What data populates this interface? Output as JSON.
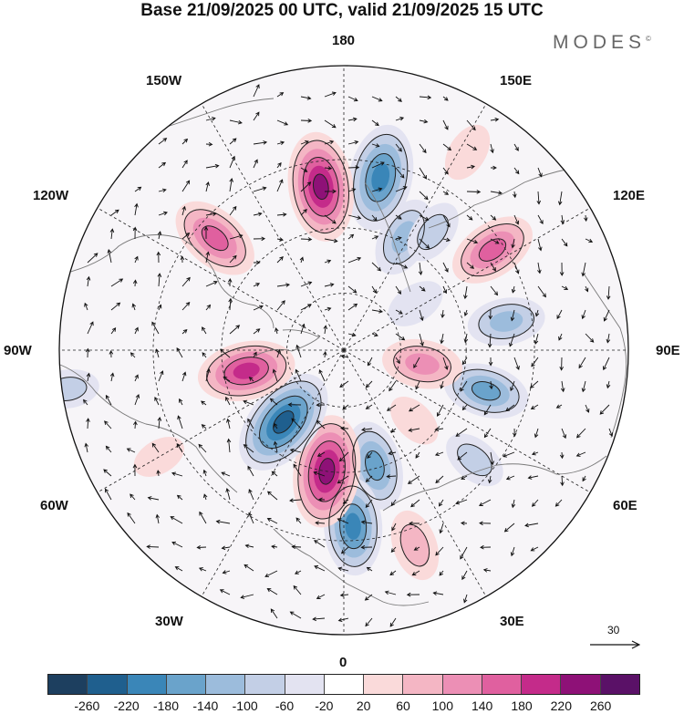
{
  "title": "Base 21/09/2025 00 UTC, valid 21/09/2025 15 UTC",
  "brand": {
    "name": "MODES",
    "mark": "©"
  },
  "longitude_labels": {
    "lon_180": "180",
    "lon_150e": "150E",
    "lon_120e": "120E",
    "lon_90e": "90E",
    "lon_60e": "60E",
    "lon_30e": "30E",
    "lon_0": "0",
    "lon_30w": "30W",
    "lon_60w": "60W",
    "lon_90w": "90W",
    "lon_120w": "120W",
    "lon_150w": "150W"
  },
  "reference_vector": {
    "label": "30",
    "units_value": 30
  },
  "colorbar": {
    "colors": [
      "#1d3f5f",
      "#1f5f8e",
      "#3a86b8",
      "#6aa3cb",
      "#9cbcdc",
      "#c3cfe6",
      "#e3e3f1",
      "#ffffff",
      "#fadada",
      "#f4b6c4",
      "#ec8fb5",
      "#e0609f",
      "#c42b8a",
      "#8e1177",
      "#5a1167"
    ],
    "tick_labels": [
      "-260",
      "-220",
      "-180",
      "-140",
      "-100",
      "-60",
      "-20",
      "20",
      "60",
      "100",
      "140",
      "180",
      "220",
      "260"
    ]
  },
  "features": {
    "anomaly_centers": [
      {
        "lon_deg": 168,
        "polar_r": 0.62,
        "value": -230
      },
      {
        "lon_deg": -172,
        "polar_r": 0.58,
        "value": 240
      },
      {
        "lon_deg": 152,
        "polar_r": 0.45,
        "value": -140
      },
      {
        "lon_deg": 143,
        "polar_r": 0.52,
        "value": -90
      },
      {
        "lon_deg": 124,
        "polar_r": 0.63,
        "value": 170
      },
      {
        "lon_deg": 100,
        "polar_r": 0.58,
        "value": -130
      },
      {
        "lon_deg": 74,
        "polar_r": 0.52,
        "value": -160
      },
      {
        "lon_deg": 80,
        "polar_r": 0.28,
        "value": 140
      },
      {
        "lon_deg": 148,
        "polar_r": 0.82,
        "value": 70
      },
      {
        "lon_deg": 123,
        "polar_r": 0.3,
        "value": -70
      },
      {
        "lon_deg": 15,
        "polar_r": 0.42,
        "value": -170
      },
      {
        "lon_deg": 3,
        "polar_r": 0.62,
        "value": -200
      },
      {
        "lon_deg": -8,
        "polar_r": 0.43,
        "value": 250
      },
      {
        "lon_deg": -40,
        "polar_r": 0.33,
        "value": -250
      },
      {
        "lon_deg": -78,
        "polar_r": 0.35,
        "value": 200
      },
      {
        "lon_deg": -131,
        "polar_r": 0.6,
        "value": 180
      },
      {
        "lon_deg": 50,
        "polar_r": 0.6,
        "value": -90
      },
      {
        "lon_deg": 20,
        "polar_r": 0.73,
        "value": 110
      },
      {
        "lon_deg": -82,
        "polar_r": 0.98,
        "value": -80
      },
      {
        "lon_deg": -60,
        "polar_r": 0.75,
        "value": 50
      },
      {
        "lon_deg": 45,
        "polar_r": 0.35,
        "value": 60
      }
    ]
  }
}
